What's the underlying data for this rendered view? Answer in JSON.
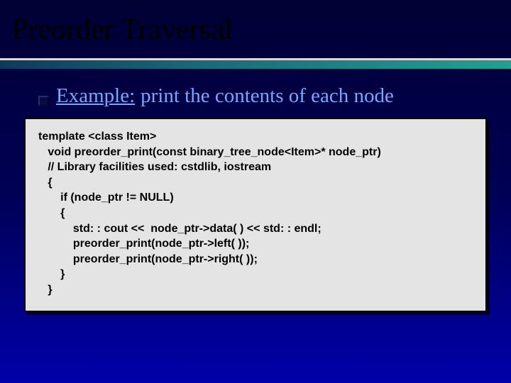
{
  "slide": {
    "title": "Preorder Traversal",
    "example_label": "Example:",
    "example_rest": "print the contents of each node",
    "code_lines": {
      "l0": "template <class Item>",
      "l1": "   void preorder_print(const binary_tree_node<Item>* node_ptr)",
      "l2": "   // Library facilities used: cstdlib, iostream",
      "l3": "   {",
      "l4": "       if (node_ptr != NULL)",
      "l5": "       {",
      "l6": "           std: : cout <<  node_ptr->data( ) << std: : endl;",
      "l7": "           preorder_print(node_ptr->left( ));",
      "l8": "           preorder_print(node_ptr->right( ));",
      "l9": "       }",
      "l10": "   }"
    }
  },
  "style": {
    "background_gradient": [
      "#000033",
      "#000055",
      "#0000aa"
    ],
    "title_color": "#000000",
    "title_fontsize": 42,
    "divider_top_color": "#d8d8d8",
    "divider_gradient": [
      "#0e3a5a",
      "#1a6a7a",
      "#22a090"
    ],
    "bullet_color": "#0a0a4a",
    "example_text_color": "#7aa6ff",
    "example_fontsize": 29,
    "codebox_bg": "#e4e4e4",
    "codebox_border": "#000000",
    "code_fontsize": 16,
    "code_font": "Arial",
    "code_color": "#000000"
  }
}
